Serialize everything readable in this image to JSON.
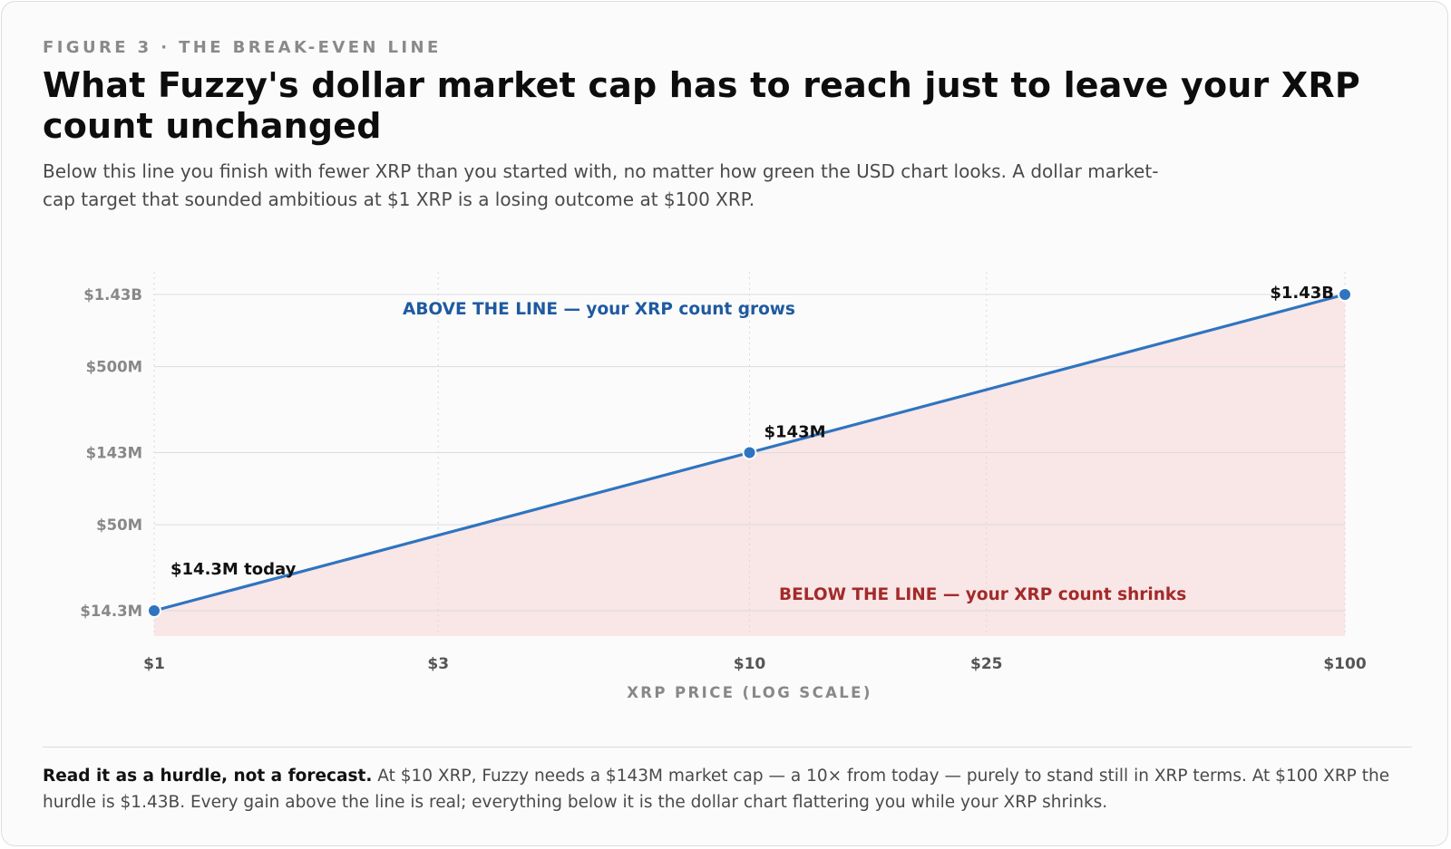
{
  "figure": {
    "eyebrow": "FIGURE 3 · THE BREAK-EVEN LINE",
    "title": "What Fuzzy's dollar market cap has to reach just to leave your XRP count unchanged",
    "subtitle": "Below this line you finish with fewer XRP than you started with, no matter how green the USD chart looks. A dollar market-cap target that sounded ambitious at $1 XRP is a losing outcome at $100 XRP.",
    "note_lead": "Read it as a hurdle, not a forecast.",
    "note_body": " At $10 XRP, Fuzzy needs a $143M market cap — a 10× from today — purely to stand still in XRP terms. At $100 XRP the hurdle is $1.43B. Every gain above the line is real; everything below it is the dollar chart flattering you while your XRP shrinks."
  },
  "colors": {
    "line": "#2f74c0",
    "above_text": "#1f5aa0",
    "below_text": "#a32a2a",
    "below_fill": "#f9e6e6",
    "grid": "#dcdcdc",
    "tick_text": "#888888"
  },
  "chart_data": {
    "type": "line",
    "x_scale": "log",
    "y_scale": "log",
    "xlabel": "XRP PRICE (LOG SCALE)",
    "ylabel": "",
    "xlim": [
      1,
      100
    ],
    "ylim": [
      14300000,
      1430000000
    ],
    "x_ticks": [
      {
        "value": 1,
        "label": "$1"
      },
      {
        "value": 3,
        "label": "$3"
      },
      {
        "value": 10,
        "label": "$10"
      },
      {
        "value": 25,
        "label": "$25"
      },
      {
        "value": 100,
        "label": "$100"
      }
    ],
    "y_ticks": [
      {
        "value": 14300000,
        "label": "$14.3M"
      },
      {
        "value": 50000000,
        "label": "$50M"
      },
      {
        "value": 143000000,
        "label": "$143M"
      },
      {
        "value": 500000000,
        "label": "$500M"
      },
      {
        "value": 1430000000,
        "label": "$1.43B"
      }
    ],
    "series": [
      {
        "x": [
          1,
          10,
          100
        ],
        "y": [
          14300000,
          143000000,
          1430000000
        ]
      }
    ],
    "point_labels": [
      "$14.3M today",
      "$143M",
      "$1.43B"
    ],
    "annotations": {
      "above": "ABOVE THE LINE — your XRP count grows",
      "below": "BELOW THE LINE — your XRP count shrinks"
    },
    "grid": true,
    "shaded_region": "below line"
  }
}
